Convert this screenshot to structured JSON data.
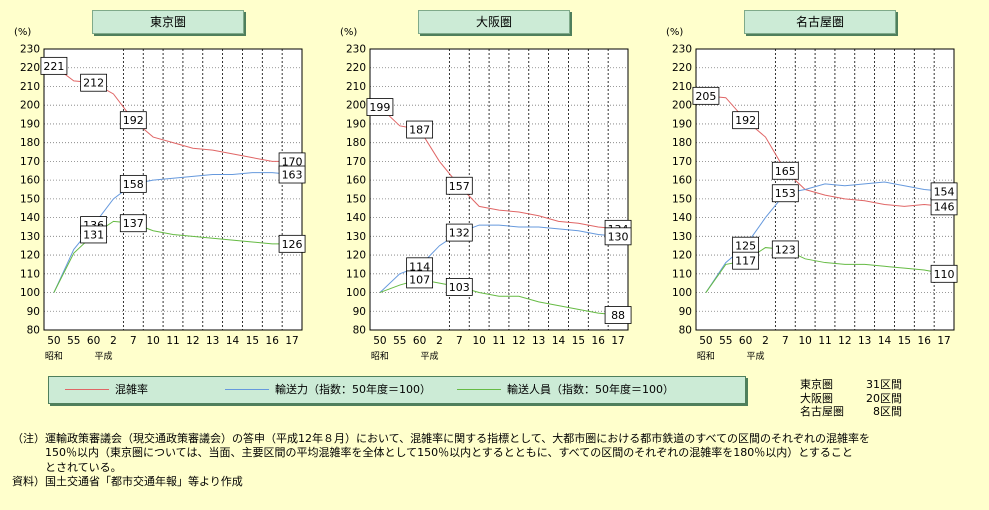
{
  "chart_data": [
    {
      "type": "line",
      "title": "東京圏",
      "y_unit": "(%)",
      "ylim": [
        80,
        230
      ],
      "yticks": [
        80,
        90,
        100,
        110,
        120,
        130,
        140,
        150,
        160,
        170,
        180,
        190,
        200,
        210,
        220,
        230
      ],
      "x_ticks": [
        "50",
        "55",
        "60",
        "2",
        "7",
        "10",
        "11",
        "12",
        "13",
        "14",
        "15",
        "16",
        "17"
      ],
      "era_labels": [
        "昭和",
        "平成"
      ],
      "series": [
        {
          "name": "混雑率",
          "color": "#e06666",
          "values": [
            221,
            213,
            212,
            206,
            192,
            183,
            180,
            177,
            176,
            174,
            172,
            170,
            170
          ]
        },
        {
          "name": "輸送力（指数：50年度＝100）",
          "color": "#6699dd",
          "values": [
            100,
            123,
            136,
            150,
            158,
            160,
            161,
            162,
            163,
            163,
            164,
            164,
            163
          ]
        },
        {
          "name": "輸送人員（指数：50年度＝100）",
          "color": "#66bb44",
          "values": [
            100,
            121,
            131,
            138,
            137,
            133,
            131,
            130,
            129,
            128,
            127,
            126,
            126
          ]
        }
      ],
      "data_labels": [
        {
          "series": 0,
          "index": 0,
          "text": "221"
        },
        {
          "series": 0,
          "index": 2,
          "text": "212"
        },
        {
          "series": 0,
          "index": 4,
          "text": "192"
        },
        {
          "series": 0,
          "index": 12,
          "text": "170"
        },
        {
          "series": 1,
          "index": 2,
          "text": "136"
        },
        {
          "series": 1,
          "index": 4,
          "text": "158"
        },
        {
          "series": 1,
          "index": 12,
          "text": "163"
        },
        {
          "series": 2,
          "index": 2,
          "text": "131"
        },
        {
          "series": 2,
          "index": 4,
          "text": "137"
        },
        {
          "series": 2,
          "index": 12,
          "text": "126"
        }
      ],
      "grid": true
    },
    {
      "type": "line",
      "title": "大阪圏",
      "y_unit": "(%)",
      "ylim": [
        80,
        230
      ],
      "yticks": [
        80,
        90,
        100,
        110,
        120,
        130,
        140,
        150,
        160,
        170,
        180,
        190,
        200,
        210,
        220,
        230
      ],
      "x_ticks": [
        "50",
        "55",
        "60",
        "2",
        "7",
        "10",
        "11",
        "12",
        "13",
        "14",
        "15",
        "16",
        "17"
      ],
      "era_labels": [
        "昭和",
        "平成"
      ],
      "series": [
        {
          "name": "混雑率",
          "color": "#e06666",
          "values": [
            199,
            189,
            187,
            170,
            157,
            146,
            144,
            143,
            141,
            138,
            137,
            135,
            134
          ]
        },
        {
          "name": "輸送力（指数：50年度＝100）",
          "color": "#6699dd",
          "values": [
            100,
            110,
            114,
            125,
            132,
            136,
            136,
            135,
            135,
            134,
            133,
            131,
            130
          ]
        },
        {
          "name": "輸送人員（指数：50年度＝100）",
          "color": "#66bb44",
          "values": [
            100,
            104,
            107,
            105,
            103,
            100,
            98,
            98,
            95,
            93,
            91,
            89,
            88
          ]
        }
      ],
      "data_labels": [
        {
          "series": 0,
          "index": 0,
          "text": "199"
        },
        {
          "series": 0,
          "index": 2,
          "text": "187"
        },
        {
          "series": 0,
          "index": 4,
          "text": "157"
        },
        {
          "series": 0,
          "index": 12,
          "text": "134"
        },
        {
          "series": 1,
          "index": 2,
          "text": "114"
        },
        {
          "series": 1,
          "index": 4,
          "text": "132"
        },
        {
          "series": 1,
          "index": 12,
          "text": "130"
        },
        {
          "series": 2,
          "index": 2,
          "text": "107"
        },
        {
          "series": 2,
          "index": 4,
          "text": "103"
        },
        {
          "series": 2,
          "index": 12,
          "text": "88"
        }
      ],
      "grid": true
    },
    {
      "type": "line",
      "title": "名古屋圏",
      "y_unit": "(%)",
      "ylim": [
        80,
        230
      ],
      "yticks": [
        80,
        90,
        100,
        110,
        120,
        130,
        140,
        150,
        160,
        170,
        180,
        190,
        200,
        210,
        220,
        230
      ],
      "x_ticks": [
        "50",
        "55",
        "60",
        "2",
        "7",
        "10",
        "11",
        "12",
        "13",
        "14",
        "15",
        "16",
        "17"
      ],
      "era_labels": [
        "昭和",
        "平成"
      ],
      "series": [
        {
          "name": "混雑率",
          "color": "#e06666",
          "values": [
            205,
            204,
            192,
            183,
            165,
            155,
            152,
            150,
            149,
            147,
            146,
            147,
            146
          ]
        },
        {
          "name": "輸送力（指数：50年度＝100）",
          "color": "#6699dd",
          "values": [
            100,
            116,
            125,
            140,
            153,
            155,
            158,
            157,
            158,
            159,
            157,
            155,
            154
          ]
        },
        {
          "name": "輸送人員（指数：50年度＝100）",
          "color": "#66bb44",
          "values": [
            100,
            115,
            117,
            124,
            123,
            118,
            116,
            115,
            115,
            114,
            113,
            112,
            110
          ]
        }
      ],
      "data_labels": [
        {
          "series": 0,
          "index": 0,
          "text": "205"
        },
        {
          "series": 0,
          "index": 2,
          "text": "192"
        },
        {
          "series": 0,
          "index": 4,
          "text": "165"
        },
        {
          "series": 0,
          "index": 12,
          "text": "146"
        },
        {
          "series": 1,
          "index": 2,
          "text": "125"
        },
        {
          "series": 1,
          "index": 4,
          "text": "153"
        },
        {
          "series": 1,
          "index": 12,
          "text": "154"
        },
        {
          "series": 2,
          "index": 2,
          "text": "117"
        },
        {
          "series": 2,
          "index": 4,
          "text": "123"
        },
        {
          "series": 2,
          "index": 12,
          "text": "110"
        }
      ],
      "grid": true
    }
  ],
  "legend": {
    "items": [
      {
        "label": "混雑率",
        "color": "#e06666"
      },
      {
        "label": "輸送力（指数：50年度＝100）",
        "color": "#6699dd"
      },
      {
        "label": "輸送人員（指数：50年度＝100）",
        "color": "#66bb44"
      }
    ]
  },
  "sections": [
    {
      "area": "東京圏",
      "count": "31区間"
    },
    {
      "area": "大阪圏",
      "count": "20区間"
    },
    {
      "area": "名古屋圏",
      "count": "8区間"
    }
  ],
  "notes": {
    "line1": "（注）運輸政策審議会（現交通政策審議会）の答申（平成12年８月）において、混雑率に関する指標として、大都市圏における都市鉄道のすべての区間のそれぞれの混雑率を",
    "line2": "　　　150％以内（東京圏については、当面、主要区間の平均混雑率を全体として150％以内とするとともに、すべての区間のそれぞれの混雑率を180％以内）とすること",
    "line3": "　　　とされている。",
    "source": "資料）国土交通省「都市交通年報」等より作成"
  }
}
